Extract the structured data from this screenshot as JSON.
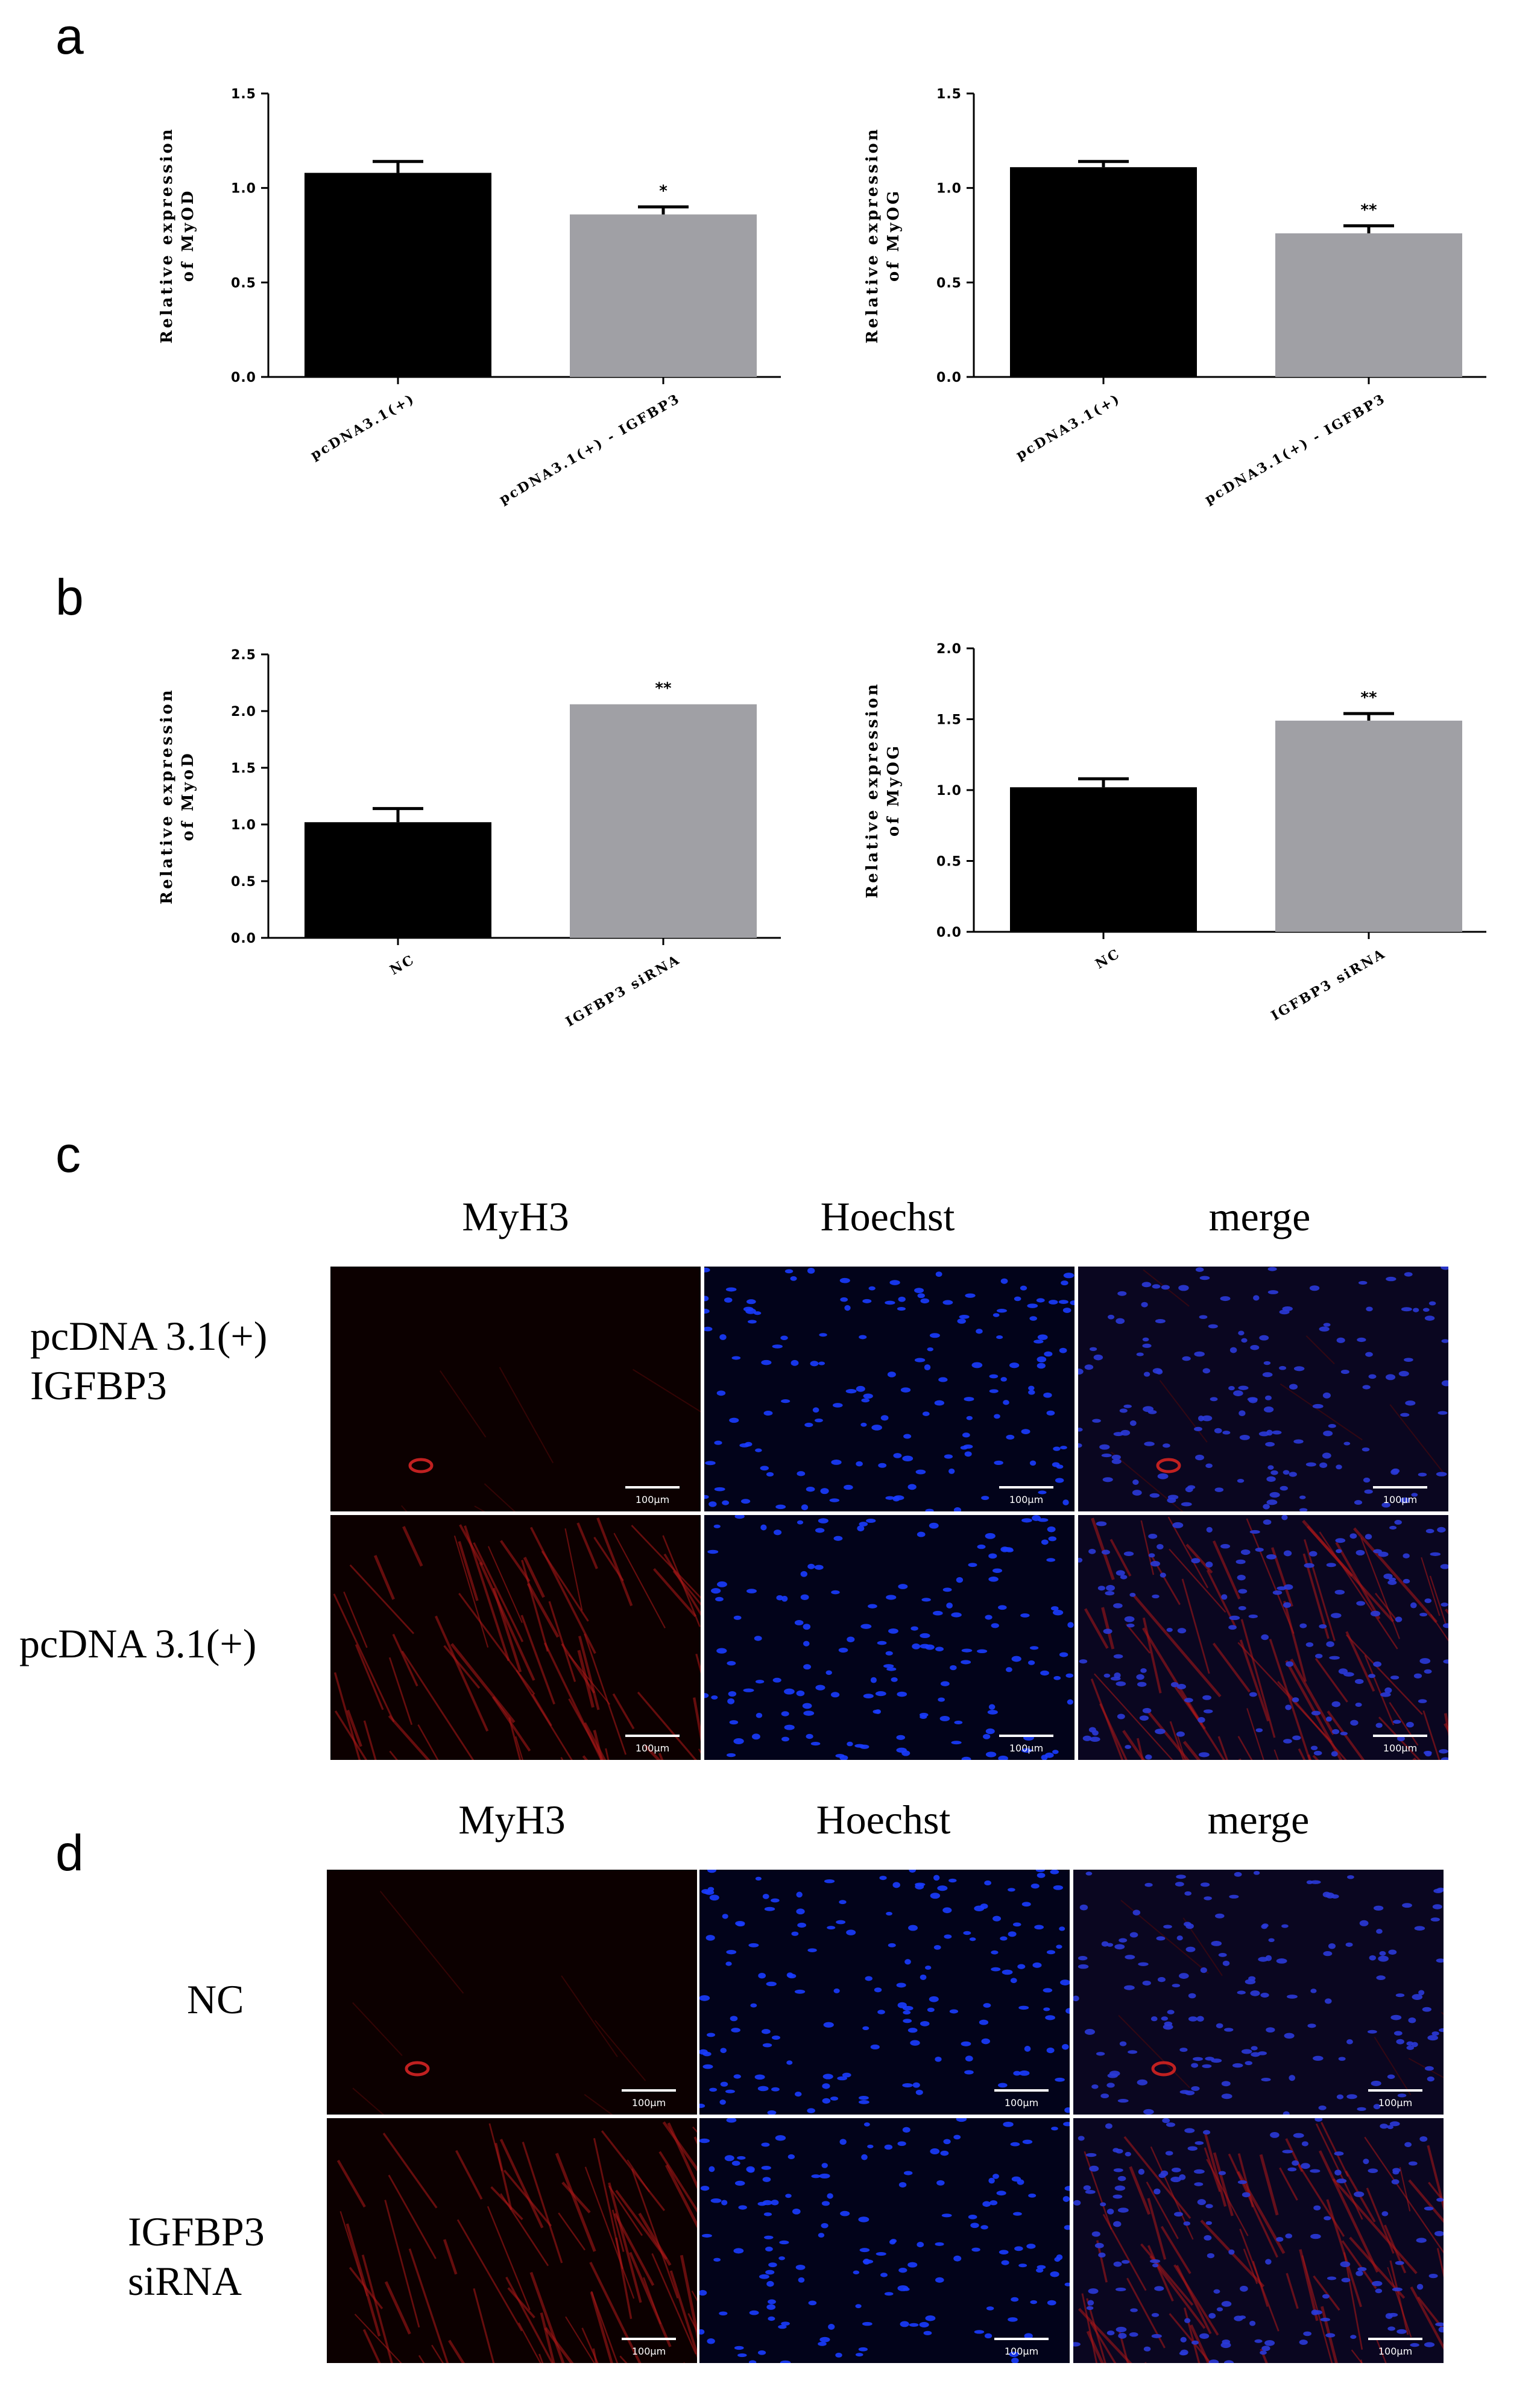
{
  "panels": {
    "a": "a",
    "b": "b",
    "c": "c",
    "d": "d"
  },
  "chart_data": [
    {
      "type": "bar",
      "panel": "a",
      "categories": [
        "pcDNA3.1(+)",
        "pcDNA3.1(+) - IGFBP3"
      ],
      "values": [
        1.08,
        0.86
      ],
      "errors": [
        0.06,
        0.04
      ],
      "significance": [
        "",
        "*"
      ],
      "ylabel_lines": [
        "Relative expression",
        "of MyOD"
      ],
      "ylim": [
        0,
        1.5
      ],
      "yticks": [
        "0.0",
        "0.5",
        "1.0",
        "1.5"
      ],
      "colors": [
        "#000000",
        "#a0a0a5"
      ]
    },
    {
      "type": "bar",
      "panel": "a",
      "categories": [
        "pcDNA3.1(+)",
        "pcDNA3.1(+) - IGFBP3"
      ],
      "values": [
        1.11,
        0.76
      ],
      "errors": [
        0.03,
        0.04
      ],
      "significance": [
        "",
        "**"
      ],
      "ylabel_lines": [
        "Relative expression",
        "of MyOG"
      ],
      "ylim": [
        0,
        1.5
      ],
      "yticks": [
        "0.0",
        "0.5",
        "1.0",
        "1.5"
      ],
      "colors": [
        "#000000",
        "#a0a0a5"
      ]
    },
    {
      "type": "bar",
      "panel": "b",
      "categories": [
        "NC",
        "IGFBP3 siRNA"
      ],
      "values": [
        1.02,
        2.06
      ],
      "errors": [
        0.12,
        0.0
      ],
      "significance": [
        "",
        "**"
      ],
      "ylabel_lines": [
        "Relative expression",
        "of MyoD"
      ],
      "ylim": [
        0,
        2.5
      ],
      "yticks": [
        "0.0",
        "0.5",
        "1.0",
        "1.5",
        "2.0",
        "2.5"
      ],
      "colors": [
        "#000000",
        "#a0a0a5"
      ]
    },
    {
      "type": "bar",
      "panel": "b",
      "categories": [
        "NC",
        "IGFBP3 siRNA"
      ],
      "values": [
        1.02,
        1.49
      ],
      "errors": [
        0.06,
        0.05
      ],
      "significance": [
        "",
        "**"
      ],
      "ylabel_lines": [
        "Relative expression",
        "of MyOG"
      ],
      "ylim": [
        0,
        2.0
      ],
      "yticks": [
        "0.0",
        "0.5",
        "1.0",
        "1.5",
        "2.0"
      ],
      "colors": [
        "#000000",
        "#a0a0a5"
      ]
    }
  ],
  "image_panels": {
    "c": {
      "columns": [
        "MyH3",
        "Hoechst",
        "merge"
      ],
      "rows": [
        {
          "label_lines": [
            "pcDNA 3.1(+)",
            "IGFBP3"
          ]
        },
        {
          "label_lines": [
            "pcDNA 3.1(+)"
          ]
        }
      ],
      "scale_bar": "100μm"
    },
    "d": {
      "columns": [
        "MyH3",
        "Hoechst",
        "merge"
      ],
      "rows": [
        {
          "label_lines": [
            "NC"
          ]
        },
        {
          "label_lines": [
            "IGFBP3",
            "siRNA"
          ]
        }
      ],
      "scale_bar": "100μm"
    }
  }
}
